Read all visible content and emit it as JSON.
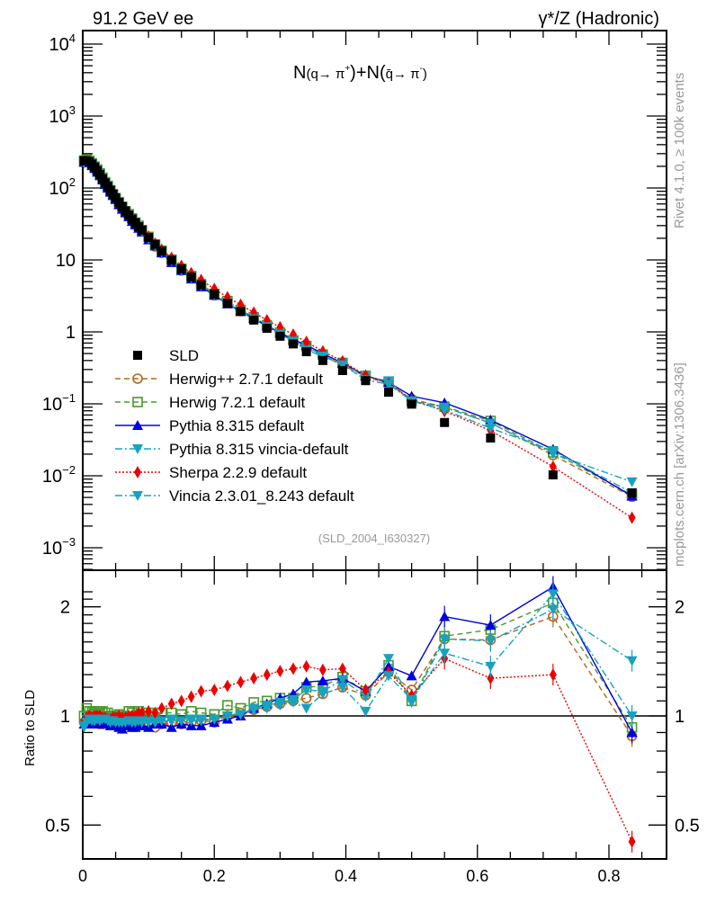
{
  "chart_data": [
    {
      "type": "scatter",
      "panel": "main",
      "title_left": "91.2 GeV ee",
      "title_right": "γ*/Z (Hadronic)",
      "observable": "N(q→ π+)+N(q̄→ π-)",
      "analysis_tag": "(SLD_2004_I630327)",
      "side_label_top": "Rivet 4.1.0, ≥ 100k events",
      "side_label_bottom": "mcplots.cern.ch [arXiv:1306.3436]",
      "yscale": "log",
      "ylim": [
        0.0005,
        20000
      ],
      "xlim": [
        0,
        0.91
      ],
      "ytick_labels": [
        "10^4",
        "10^3",
        "10^2",
        "10",
        "1",
        "10^-1",
        "10^-2",
        "10^-3"
      ],
      "ytick_values": [
        10000,
        1000,
        100,
        10,
        1,
        0.1,
        0.01,
        0.001
      ],
      "legend_position": "bottom-left",
      "legend": [
        {
          "name": "SLD",
          "color": "#000000",
          "marker": "square-filled",
          "line": "none"
        },
        {
          "name": "Herwig++ 2.7.1 default",
          "color": "#b5651d",
          "marker": "circle-open",
          "line": "dashed"
        },
        {
          "name": "Herwig 7.2.1 default",
          "color": "#4a9a2a",
          "marker": "square-open",
          "line": "dashed"
        },
        {
          "name": "Pythia 8.315 default",
          "color": "#0000dd",
          "marker": "triangle-up",
          "line": "solid"
        },
        {
          "name": "Pythia 8.315 vincia-default",
          "color": "#17a2c0",
          "marker": "triangle-down",
          "line": "dashdot"
        },
        {
          "name": "Sherpa 2.2.9 default",
          "color": "#ee0000",
          "marker": "diamond",
          "line": "dotted"
        },
        {
          "name": "Vincia 2.3.01_8.243 default",
          "color": "#17a2c0",
          "marker": "triangle-down",
          "line": "dashdot"
        }
      ],
      "x": [
        0.002,
        0.006,
        0.01,
        0.014,
        0.018,
        0.022,
        0.026,
        0.03,
        0.034,
        0.038,
        0.042,
        0.046,
        0.05,
        0.055,
        0.06,
        0.065,
        0.07,
        0.075,
        0.08,
        0.085,
        0.09,
        0.1,
        0.11,
        0.12,
        0.135,
        0.15,
        0.165,
        0.18,
        0.2,
        0.22,
        0.24,
        0.26,
        0.28,
        0.3,
        0.32,
        0.34,
        0.365,
        0.395,
        0.43,
        0.465,
        0.5,
        0.55,
        0.62,
        0.715,
        0.835
      ],
      "data": [
        240,
        238,
        232,
        215,
        195,
        175,
        155,
        135,
        118,
        105,
        93,
        82,
        73,
        63,
        55,
        48,
        42,
        37,
        33,
        29,
        26,
        20.5,
        16.5,
        13.2,
        9.9,
        7.5,
        5.8,
        4.5,
        3.35,
        2.5,
        1.92,
        1.46,
        1.12,
        0.87,
        0.68,
        0.53,
        0.4,
        0.29,
        0.21,
        0.145,
        0.099,
        0.055,
        0.0335,
        0.0103,
        0.0058
      ]
    },
    {
      "type": "line",
      "panel": "ratio",
      "ylabel": "Ratio to SLD",
      "yscale": "log",
      "ylim": [
        0.42,
        2.3
      ],
      "xlim": [
        0,
        0.91
      ],
      "ytick_labels": [
        "0.5",
        "1",
        "2"
      ],
      "ytick_values": [
        0.5,
        1,
        2
      ],
      "xtick_labels": [
        "0",
        "0.2",
        "0.4",
        "0.6",
        "0.8"
      ],
      "xtick_values": [
        0,
        0.2,
        0.4,
        0.6,
        0.8
      ],
      "reference_line": 1,
      "series": [
        {
          "name": "Herwig++ 2.7.1 default",
          "values": [
            0.96,
            0.97,
            0.98,
            0.97,
            0.96,
            0.96,
            0.95,
            0.95,
            0.97,
            0.96,
            0.96,
            0.97,
            0.98,
            0.96,
            0.95,
            0.96,
            0.98,
            0.96,
            0.95,
            0.96,
            0.97,
            0.96,
            0.93,
            0.95,
            0.96,
            0.95,
            0.96,
            0.97,
            0.96,
            1.0,
            1.02,
            1.04,
            1.06,
            1.08,
            1.1,
            1.12,
            1.15,
            1.2,
            1.14,
            1.32,
            1.18,
            1.63,
            1.62,
            1.88,
            0.88
          ]
        },
        {
          "name": "Herwig 7.2.1 default",
          "values": [
            1.0,
            1.05,
            1.03,
            1.02,
            1.02,
            1.03,
            1.03,
            1.03,
            1.02,
            1.02,
            1.0,
            1.0,
            0.99,
            1.01,
            1.0,
            0.99,
            1.03,
            1.02,
            1.0,
            1.03,
            1.0,
            1.02,
            0.99,
            1.02,
            1.02,
            1.01,
            1.03,
            1.02,
            1.01,
            1.07,
            1.05,
            1.09,
            1.1,
            1.12,
            1.12,
            1.2,
            1.21,
            1.28,
            1.17,
            1.38,
            1.1,
            1.66,
            1.73,
            2.05,
            0.93
          ]
        },
        {
          "name": "Pythia 8.315 default",
          "values": [
            0.95,
            0.95,
            0.96,
            0.95,
            0.96,
            0.95,
            0.96,
            0.96,
            0.95,
            0.95,
            0.94,
            0.96,
            0.95,
            0.93,
            0.92,
            0.94,
            0.95,
            0.93,
            0.93,
            0.95,
            0.94,
            0.93,
            0.95,
            0.95,
            0.93,
            0.95,
            0.94,
            0.94,
            0.96,
            0.98,
            1.0,
            1.05,
            1.08,
            1.12,
            1.15,
            1.24,
            1.25,
            1.27,
            1.17,
            1.37,
            1.29,
            1.88,
            1.78,
            2.27,
            0.9
          ]
        },
        {
          "name": "Pythia 8.315 vincia-default",
          "values": [
            0.93,
            0.98,
            0.99,
            0.98,
            0.97,
            0.98,
            0.98,
            0.98,
            0.99,
            0.98,
            0.97,
            0.97,
            0.97,
            0.97,
            0.97,
            0.97,
            0.99,
            0.97,
            0.97,
            0.98,
            0.97,
            0.97,
            0.97,
            0.97,
            0.98,
            0.97,
            0.98,
            0.98,
            0.98,
            1.0,
            1.01,
            1.05,
            1.07,
            1.09,
            1.11,
            1.18,
            1.17,
            1.26,
            1.13,
            1.44,
            1.09,
            1.63,
            1.61,
            1.97,
            1.42
          ]
        },
        {
          "name": "Sherpa 2.2.9 default",
          "values": [
            0.97,
            0.99,
            1.0,
            0.99,
            1.0,
            1.0,
            1.0,
            0.99,
            0.99,
            0.98,
            0.98,
            0.99,
            0.99,
            1.0,
            0.99,
            0.99,
            1.0,
            1.0,
            1.0,
            1.02,
            1.02,
            1.03,
            1.02,
            1.05,
            1.08,
            1.1,
            1.13,
            1.17,
            1.18,
            1.21,
            1.24,
            1.27,
            1.3,
            1.33,
            1.35,
            1.37,
            1.34,
            1.35,
            1.18,
            1.32,
            1.14,
            1.44,
            1.27,
            1.3,
            0.45
          ]
        },
        {
          "name": "Vincia 2.3.01_8.243 default",
          "values": [
            0.94,
            0.96,
            0.98,
            0.97,
            0.97,
            0.98,
            0.97,
            0.98,
            0.98,
            0.97,
            0.96,
            0.97,
            0.96,
            0.96,
            0.96,
            0.96,
            0.97,
            0.96,
            0.96,
            0.97,
            0.96,
            0.96,
            0.96,
            0.97,
            0.97,
            0.97,
            0.97,
            0.97,
            0.98,
            1.0,
            1.01,
            1.04,
            1.05,
            1.07,
            1.09,
            1.05,
            1.15,
            1.2,
            1.03,
            1.29,
            1.11,
            1.49,
            1.37,
            2.17,
            1.0
          ]
        }
      ]
    }
  ]
}
